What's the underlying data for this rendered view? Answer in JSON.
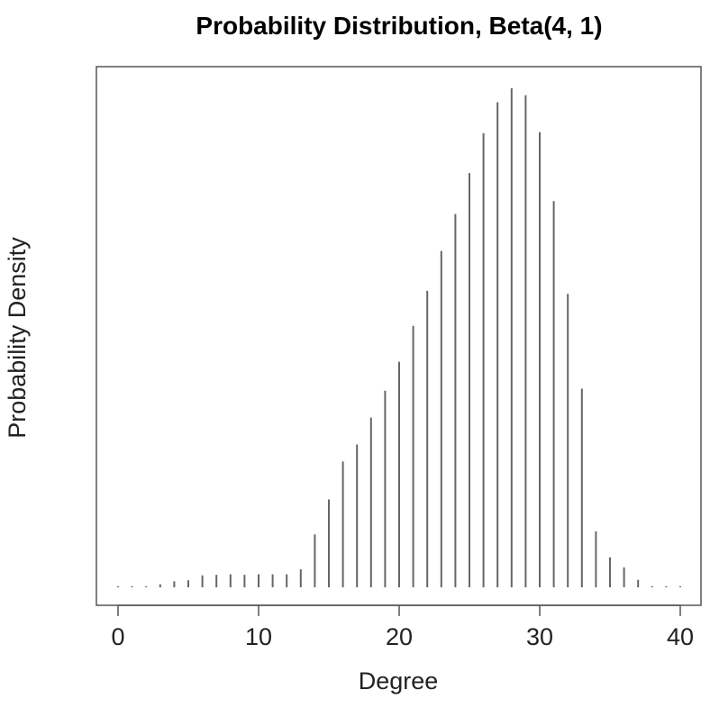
{
  "chart_data": {
    "type": "bar",
    "style": "spike",
    "title": "Probability Distribution, Beta(4, 1)",
    "xlabel": "Degree",
    "ylabel": "Probability Density",
    "xlim": [
      0,
      40
    ],
    "xticks": [
      0,
      10,
      20,
      30,
      40
    ],
    "y_tick_labels_shown": false,
    "grid": false,
    "x": [
      0,
      1,
      2,
      3,
      4,
      5,
      6,
      7,
      8,
      9,
      10,
      11,
      12,
      13,
      14,
      15,
      16,
      17,
      18,
      19,
      20,
      21,
      22,
      23,
      24,
      25,
      26,
      27,
      28,
      29,
      30,
      31,
      32,
      33,
      34,
      35,
      36,
      37,
      38,
      39,
      40
    ],
    "values": [
      0.0,
      0.0,
      0.0,
      0.006,
      0.012,
      0.014,
      0.024,
      0.025,
      0.026,
      0.025,
      0.026,
      0.026,
      0.026,
      0.036,
      0.106,
      0.176,
      0.252,
      0.286,
      0.34,
      0.394,
      0.452,
      0.524,
      0.594,
      0.674,
      0.748,
      0.83,
      0.91,
      0.972,
      1.0,
      0.986,
      0.912,
      0.774,
      0.588,
      0.398,
      0.112,
      0.06,
      0.04,
      0.015,
      0.0,
      0.0,
      0.0
    ],
    "ylim": [
      0,
      1.04
    ]
  }
}
